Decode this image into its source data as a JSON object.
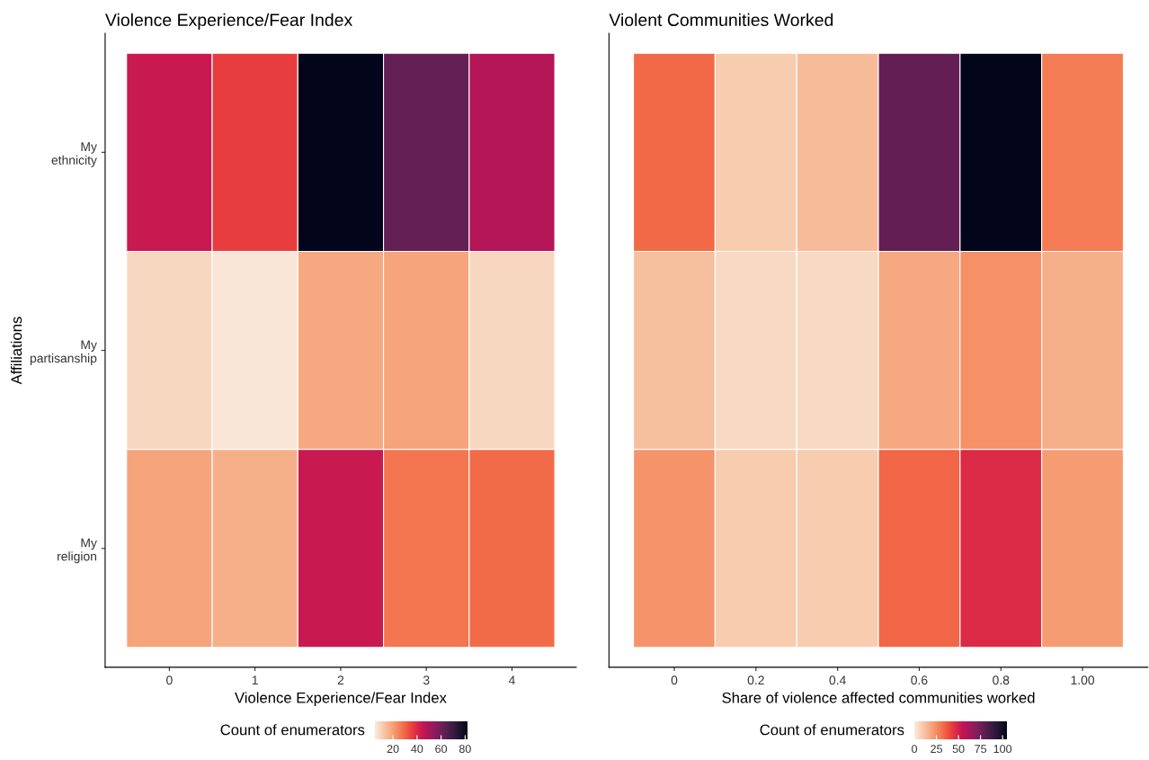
{
  "chart_data": [
    {
      "type": "heatmap",
      "title": "Violence Experience/Fear Index",
      "xlabel": "Violence Experience/Fear Index",
      "ylabel": "Affiliations",
      "clabel": "Count of enumerators",
      "categories": [
        "0",
        "1",
        "2",
        "3",
        "4"
      ],
      "y_categories": [
        "My\nethnicity",
        "My\npartisanship",
        "My\nreligion"
      ],
      "cells": [
        [
          44,
          36,
          82,
          62,
          48
        ],
        [
          9,
          6,
          18,
          19,
          9
        ],
        [
          19,
          17,
          44,
          27,
          29
        ]
      ],
      "clim": [
        5,
        82
      ],
      "cticks": [
        20,
        40,
        60,
        80
      ],
      "grid": false,
      "legend": false
    },
    {
      "type": "heatmap",
      "title": "Violent Communities Worked",
      "xlabel": "Share of violence affected communities worked",
      "clabel": "Count of enumerators",
      "categories": [
        "0",
        "0.2",
        "0.4",
        "0.6",
        "0.8",
        "1.00"
      ],
      "y_categories": [
        null,
        null,
        null
      ],
      "cells": [
        [
          33,
          9,
          13,
          78,
          105,
          29
        ],
        [
          12,
          5,
          5,
          18,
          24,
          16
        ],
        [
          23,
          9,
          9,
          34,
          47,
          21
        ]
      ],
      "clim": [
        0,
        105
      ],
      "cticks": [
        0,
        25,
        50,
        75,
        100
      ],
      "tick_labels": "x",
      "grid": false,
      "legend": false
    }
  ]
}
